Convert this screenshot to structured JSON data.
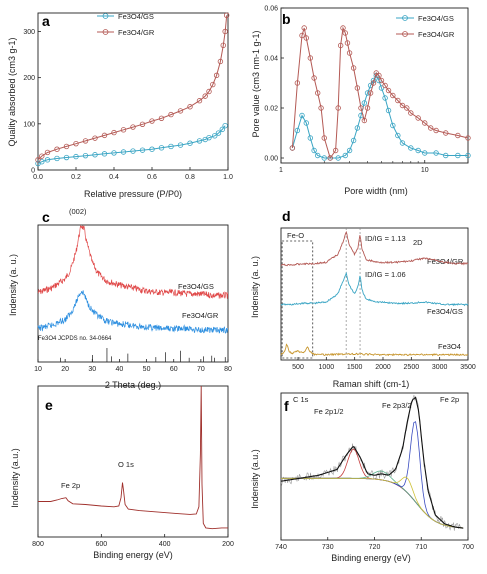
{
  "figure": {
    "colors": {
      "gs_teal": "#3aa5c4",
      "gr_brown": "#b45a55",
      "red": "#e04848",
      "blue": "#2d8fe0",
      "tan": "#c8962e",
      "axis": "#222222",
      "e_trace": "#a0302c",
      "f_noisy": "#9a9a9a",
      "f_fit_black": "#111111",
      "f_fit_red": "#c43b3b",
      "f_fit_blue": "#3a4cc0",
      "f_fit_green": "#5ab08a",
      "f_fit_navy": "#2a2a7a",
      "f_fit_yellow": "#cfc23a"
    }
  },
  "chart_data": [
    {
      "panel": "a",
      "type": "line",
      "xlabel": "Relative pressure (P/P0)",
      "ylabel": "Quality absorbed (cm3 g-1)",
      "xlim": [
        0.0,
        1.0
      ],
      "ylim": [
        0,
        340
      ],
      "xticks": [
        "0.0",
        "0.2",
        "0.4",
        "0.6",
        "0.8",
        "1.0"
      ],
      "xtick_values": [
        0,
        0.2,
        0.4,
        0.6,
        0.8,
        1.0
      ],
      "yticks": [
        "0",
        "100",
        "200",
        "300"
      ],
      "ytick_values": [
        0,
        100,
        200,
        300
      ],
      "legend": [
        "Fe3O4/GS",
        "Fe3O4/GR"
      ],
      "series": [
        {
          "name": "Fe3O4/GS",
          "x": [
            0.0,
            0.02,
            0.05,
            0.1,
            0.15,
            0.2,
            0.25,
            0.3,
            0.35,
            0.4,
            0.45,
            0.5,
            0.55,
            0.6,
            0.65,
            0.7,
            0.75,
            0.8,
            0.85,
            0.88,
            0.9,
            0.93,
            0.95,
            0.97,
            0.985
          ],
          "y": [
            14,
            18,
            22,
            25,
            27,
            29,
            31,
            33,
            35,
            37,
            39,
            41,
            43,
            45,
            48,
            51,
            54,
            58,
            63,
            66,
            70,
            74,
            80,
            88,
            96
          ]
        },
        {
          "name": "Fe3O4/GR",
          "x": [
            0.0,
            0.02,
            0.05,
            0.1,
            0.15,
            0.2,
            0.25,
            0.3,
            0.35,
            0.4,
            0.45,
            0.5,
            0.55,
            0.6,
            0.65,
            0.7,
            0.75,
            0.8,
            0.85,
            0.88,
            0.9,
            0.92,
            0.94,
            0.96,
            0.975,
            0.985,
            0.993
          ],
          "y": [
            22,
            30,
            38,
            45,
            51,
            57,
            63,
            69,
            75,
            81,
            87,
            93,
            99,
            106,
            112,
            120,
            128,
            137,
            150,
            160,
            170,
            185,
            205,
            235,
            270,
            300,
            335
          ]
        }
      ]
    },
    {
      "panel": "b",
      "type": "line",
      "xscale": "log",
      "xlabel": "Pore width (nm)",
      "ylabel": "Pore value (cm3 nm-1 g-1)",
      "xlim": [
        1,
        20
      ],
      "ylim": [
        -0.002,
        0.06
      ],
      "xticks": [
        "1",
        "10"
      ],
      "xtick_values": [
        1,
        10
      ],
      "yticks": [
        "0.00",
        "0.02",
        "0.04",
        "0.06"
      ],
      "ytick_values": [
        0,
        0.02,
        0.04,
        0.06
      ],
      "legend": [
        "Fe3O4/GS",
        "Fe3O4/GR"
      ],
      "series": [
        {
          "name": "Fe3O4/GS",
          "x": [
            1.2,
            1.3,
            1.4,
            1.5,
            1.6,
            1.7,
            1.8,
            2.0,
            2.2,
            2.5,
            2.8,
            3.0,
            3.2,
            3.4,
            3.6,
            3.8,
            4.0,
            4.2,
            4.4,
            4.6,
            4.8,
            5.0,
            5.3,
            5.6,
            6.0,
            6.5,
            7.0,
            8.0,
            9.0,
            10,
            12,
            14,
            17,
            20
          ],
          "y": [
            0.004,
            0.011,
            0.017,
            0.014,
            0.008,
            0.003,
            0.001,
            0.0,
            0.0,
            0.0,
            0.001,
            0.003,
            0.007,
            0.012,
            0.017,
            0.022,
            0.026,
            0.029,
            0.031,
            0.033,
            0.031,
            0.028,
            0.024,
            0.019,
            0.013,
            0.009,
            0.006,
            0.004,
            0.003,
            0.002,
            0.002,
            0.001,
            0.001,
            0.001
          ]
        },
        {
          "name": "Fe3O4/GR",
          "x": [
            1.2,
            1.3,
            1.4,
            1.45,
            1.5,
            1.6,
            1.7,
            1.8,
            1.9,
            2.0,
            2.2,
            2.4,
            2.5,
            2.6,
            2.7,
            2.8,
            2.9,
            3.0,
            3.2,
            3.4,
            3.6,
            3.8,
            4.0,
            4.2,
            4.4,
            4.6,
            4.8,
            5.0,
            5.3,
            5.6,
            6.0,
            6.5,
            7.0,
            7.5,
            8.0,
            9.0,
            10,
            11,
            12,
            14,
            17,
            20
          ],
          "y": [
            0.004,
            0.03,
            0.049,
            0.052,
            0.048,
            0.04,
            0.032,
            0.026,
            0.02,
            0.008,
            0.0,
            0.003,
            0.02,
            0.045,
            0.052,
            0.05,
            0.046,
            0.042,
            0.036,
            0.028,
            0.02,
            0.015,
            0.02,
            0.026,
            0.03,
            0.034,
            0.033,
            0.031,
            0.029,
            0.027,
            0.025,
            0.023,
            0.021,
            0.02,
            0.018,
            0.016,
            0.014,
            0.012,
            0.011,
            0.01,
            0.009,
            0.008
          ]
        }
      ]
    },
    {
      "panel": "c",
      "type": "line",
      "xlabel": "2 Theta (deg.)",
      "ylabel": "Indensity (a. u.)",
      "xlim": [
        10,
        80
      ],
      "xticks": [
        "10",
        "20",
        "30",
        "40",
        "50",
        "60",
        "70",
        "80"
      ],
      "xtick_values": [
        10,
        20,
        30,
        40,
        50,
        60,
        70,
        80
      ],
      "annotations": [
        "(002)",
        "Fe3O4 JCPDS no. 34-0664"
      ],
      "series": [
        {
          "name": "Fe3O4/GS",
          "x": [
            10,
            15,
            20,
            22,
            24,
            25,
            26,
            27,
            28,
            30,
            32,
            35,
            40,
            45,
            50,
            55,
            60,
            65,
            70,
            75,
            80
          ],
          "y": [
            0.05,
            0.08,
            0.14,
            0.2,
            0.32,
            0.42,
            0.5,
            0.47,
            0.38,
            0.25,
            0.18,
            0.13,
            0.1,
            0.08,
            0.06,
            0.05,
            0.05,
            0.04,
            0.04,
            0.03,
            0.03
          ]
        },
        {
          "name": "Fe3O4/GR",
          "x": [
            10,
            15,
            20,
            22,
            24,
            25,
            26,
            27,
            28,
            30,
            32,
            35,
            40,
            45,
            50,
            55,
            60,
            65,
            70,
            75,
            80
          ],
          "y": [
            0.03,
            0.05,
            0.09,
            0.13,
            0.2,
            0.25,
            0.28,
            0.26,
            0.21,
            0.15,
            0.11,
            0.08,
            0.06,
            0.05,
            0.04,
            0.03,
            0.03,
            0.03,
            0.02,
            0.02,
            0.02
          ]
        }
      ],
      "reference_ticks": {
        "x": [
          18.3,
          30.1,
          35.4,
          37.1,
          43.1,
          53.4,
          57.0,
          62.5,
          65.7,
          71.0,
          74.0,
          75.0,
          79.0
        ],
        "h": [
          0.3,
          0.5,
          1.0,
          0.4,
          0.6,
          0.35,
          0.7,
          0.8,
          0.3,
          0.4,
          0.45,
          0.3,
          0.35
        ]
      }
    },
    {
      "panel": "d",
      "type": "line",
      "xlabel": "Raman shift (cm-1)",
      "ylabel": "Indensity (a. u.)",
      "xlim": [
        200,
        3500
      ],
      "xticks": [
        "500",
        "1000",
        "1500",
        "2000",
        "2500",
        "3000",
        "3500"
      ],
      "xtick_values": [
        500,
        1000,
        1500,
        2000,
        2500,
        3000,
        3500
      ],
      "annotations": [
        "Fe-O",
        "ID/IG = 1.13",
        "ID/IG = 1.06",
        "2D"
      ],
      "dashed_lines_x": [
        1350,
        1595
      ],
      "series": [
        {
          "name": "Fe3O4/GR",
          "x": [
            200,
            400,
            600,
            800,
            1000,
            1200,
            1300,
            1350,
            1400,
            1500,
            1560,
            1595,
            1630,
            1700,
            1900,
            2200,
            2500,
            2700,
            2900,
            3100,
            3300,
            3500
          ],
          "y": [
            0.72,
            0.72,
            0.73,
            0.73,
            0.74,
            0.8,
            0.9,
            0.97,
            0.88,
            0.8,
            0.85,
            0.95,
            0.84,
            0.76,
            0.74,
            0.74,
            0.75,
            0.77,
            0.76,
            0.74,
            0.73,
            0.73
          ]
        },
        {
          "name": "Fe3O4/GS",
          "x": [
            200,
            400,
            600,
            800,
            1000,
            1200,
            1300,
            1350,
            1400,
            1500,
            1560,
            1595,
            1630,
            1700,
            1900,
            2200,
            2500,
            2700,
            2900,
            3100,
            3300,
            3500
          ],
          "y": [
            0.42,
            0.42,
            0.43,
            0.43,
            0.44,
            0.5,
            0.6,
            0.66,
            0.57,
            0.5,
            0.56,
            0.64,
            0.53,
            0.46,
            0.44,
            0.43,
            0.43,
            0.44,
            0.43,
            0.42,
            0.42,
            0.42
          ]
        },
        {
          "name": "Fe3O4",
          "x": [
            200,
            260,
            300,
            350,
            400,
            480,
            540,
            600,
            670,
            700,
            750,
            800,
            1000,
            1300,
            1500,
            2000,
            2500,
            3000,
            3500
          ],
          "y": [
            0.04,
            0.06,
            0.12,
            0.06,
            0.05,
            0.07,
            0.06,
            0.05,
            0.1,
            0.07,
            0.05,
            0.04,
            0.04,
            0.045,
            0.045,
            0.04,
            0.04,
            0.04,
            0.04
          ]
        }
      ]
    },
    {
      "panel": "e",
      "type": "line",
      "xlabel": "Binding energy (eV)",
      "ylabel": "Indensity (a.u.)",
      "xlim": [
        800,
        200
      ],
      "ylim": [
        0,
        1
      ],
      "xticks": [
        "800",
        "600",
        "400",
        "200"
      ],
      "xtick_values": [
        800,
        600,
        400,
        200
      ],
      "annotations": [
        "C 1s",
        "O 1s",
        "Fe 2p"
      ],
      "series": [
        {
          "name": "survey",
          "x": [
            800,
            760,
            740,
            725,
            712,
            705,
            690,
            650,
            600,
            560,
            545,
            538,
            533,
            530,
            525,
            515,
            480,
            420,
            360,
            320,
            300,
            292,
            287,
            284.5,
            282,
            278,
            270,
            250,
            220,
            200
          ],
          "y": [
            0.235,
            0.235,
            0.245,
            0.255,
            0.26,
            0.24,
            0.22,
            0.215,
            0.205,
            0.2,
            0.205,
            0.26,
            0.36,
            0.31,
            0.215,
            0.185,
            0.175,
            0.165,
            0.155,
            0.15,
            0.152,
            0.2,
            0.55,
            1.05,
            0.35,
            0.09,
            0.06,
            0.055,
            0.06,
            0.06
          ]
        }
      ]
    },
    {
      "panel": "f",
      "type": "line",
      "xlabel": "Binding energy (eV)",
      "ylabel": "Indensity (a.u.)",
      "xlim": [
        740,
        700
      ],
      "ylim": [
        0,
        1
      ],
      "xticks": [
        "740",
        "730",
        "720",
        "710",
        "700"
      ],
      "xtick_values": [
        740,
        730,
        720,
        710,
        700
      ],
      "annotations": [
        "Fe 2p",
        "Fe 2p1/2",
        "Fe 2p3/2"
      ],
      "series": [
        {
          "name": "fit",
          "x": [
            740,
            736,
            732,
            728,
            726,
            724.5,
            723,
            721.5,
            720,
            718.5,
            717,
            715.5,
            714,
            713,
            712,
            711.2,
            710.5,
            709.5,
            708.5,
            707,
            705,
            703,
            701
          ],
          "y": [
            0.4,
            0.42,
            0.44,
            0.48,
            0.58,
            0.64,
            0.56,
            0.45,
            0.44,
            0.45,
            0.44,
            0.48,
            0.62,
            0.8,
            0.95,
            0.97,
            0.87,
            0.55,
            0.33,
            0.17,
            0.11,
            0.09,
            0.08
          ]
        }
      ]
    }
  ],
  "panels": {
    "a": {
      "label": "a",
      "xlabel": "Relative pressure (P/P0)",
      "ylabel": "Quality absorbed (cm3 g-1)",
      "legend_gs": "Fe3O4/GS",
      "legend_gr": "Fe3O4/GR"
    },
    "b": {
      "label": "b",
      "xlabel": "Pore width (nm)",
      "ylabel": "Pore value (cm3 nm-1 g-1)",
      "legend_gs": "Fe3O4/GS",
      "legend_gr": "Fe3O4/GR"
    },
    "c": {
      "label": "c",
      "xlabel": "2 Theta (deg.)",
      "ylabel": "Indensity (a. u.)",
      "peak": "(002)",
      "label_gs": "Fe3O4/GS",
      "label_gr": "Fe3O4/GR",
      "jcpds": "Fe3O4 JCPDS no. 34-0664"
    },
    "d": {
      "label": "d",
      "xlabel": "Raman shift (cm-1)",
      "ylabel": "Indensity (a. u.)",
      "feo": "Fe-O",
      "ratio_top": "ID/IG = 1.13",
      "ratio_mid": "ID/IG = 1.06",
      "twod": "2D",
      "label_gr": "Fe3O4/GR",
      "label_gs": "Fe3O4/GS",
      "label_fe": "Fe3O4"
    },
    "e": {
      "label": "e",
      "xlabel": "Binding energy (eV)",
      "ylabel": "Indensity (a.u.)",
      "c1s": "C 1s",
      "o1s": "O 1s",
      "fe2p": "Fe 2p"
    },
    "f": {
      "label": "f",
      "xlabel": "Binding energy (eV)",
      "ylabel": "Indensity (a.u.)",
      "fe2p": "Fe 2p",
      "p12": "Fe 2p1/2",
      "p32": "Fe 2p3/2"
    }
  }
}
